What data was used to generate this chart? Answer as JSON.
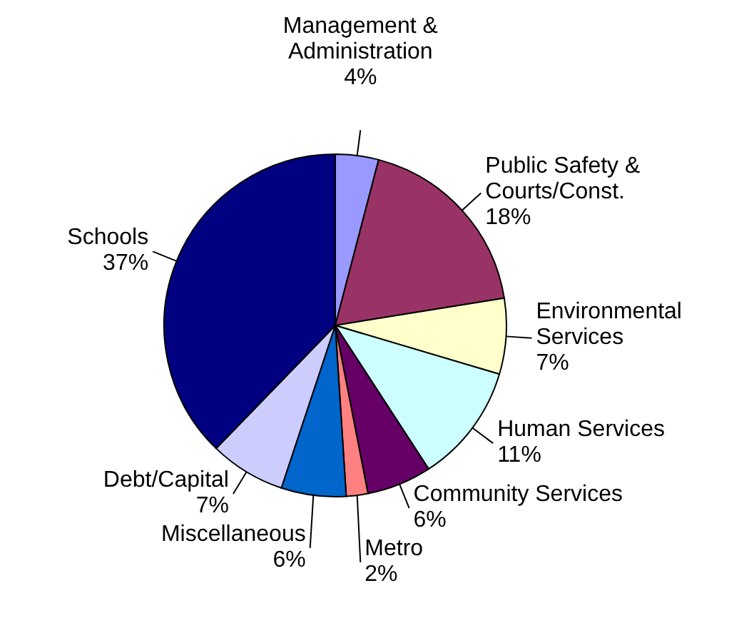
{
  "chart_data": {
    "type": "pie",
    "categories": [
      "Management & Administration",
      "Public Safety & Courts/Const.",
      "Environmental Services",
      "Human Services",
      "Community Services",
      "Metro",
      "Miscellaneous",
      "Debt/Capital",
      "Schools"
    ],
    "values": [
      4,
      18,
      7,
      11,
      6,
      2,
      6,
      7,
      37
    ],
    "value_labels": [
      "4%",
      "18%",
      "7%",
      "11%",
      "6%",
      "2%",
      "6%",
      "7%",
      "37%"
    ],
    "colors": [
      "#9999ff",
      "#993366",
      "#ffffcc",
      "#ccffff",
      "#660066",
      "#ff8080",
      "#0066cc",
      "#ccccff",
      "#000080"
    ]
  }
}
